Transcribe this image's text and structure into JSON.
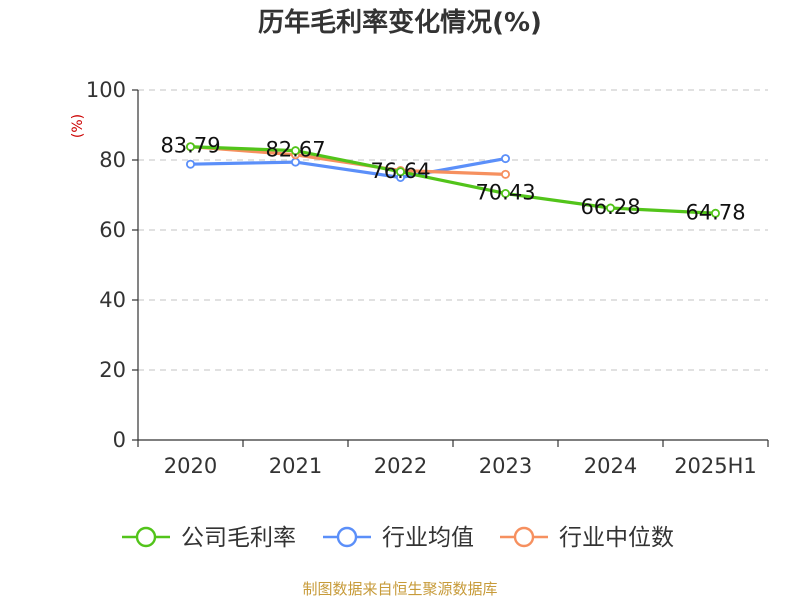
{
  "chart_data": {
    "type": "line",
    "title": "历年毛利率变化情况(%)",
    "ylabel": "(%)",
    "xlabel": "",
    "categories": [
      "2020",
      "2021",
      "2022",
      "2023",
      "2024",
      "2025H1"
    ],
    "ylim": [
      0,
      100
    ],
    "yticks": [
      0,
      20,
      40,
      60,
      80,
      100
    ],
    "grid": true,
    "legend_position": "bottom",
    "series": [
      {
        "name": "公司毛利率",
        "color": "#52c41a",
        "values": [
          83.79,
          82.67,
          76.64,
          70.43,
          66.28,
          64.78
        ],
        "labels": [
          "83.79",
          "82.67",
          "76.64",
          "70.43",
          "66.28",
          "64.78"
        ]
      },
      {
        "name": "行业均值",
        "color": "#5b8ff9",
        "values": [
          78.8,
          79.4,
          75.0,
          80.4,
          null,
          null
        ]
      },
      {
        "name": "行业中位数",
        "color": "#f6905f",
        "values": [
          83.8,
          81.5,
          77.0,
          75.9,
          null,
          null
        ]
      }
    ]
  },
  "footer": {
    "source": "制图数据来自恒生聚源数据库"
  }
}
